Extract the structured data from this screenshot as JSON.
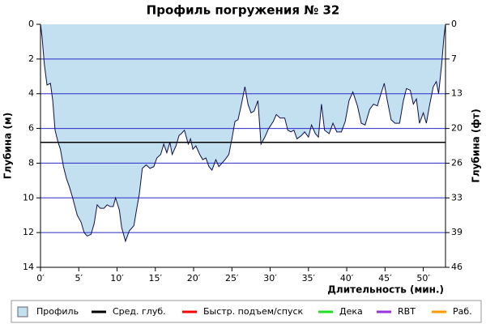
{
  "chart_data": {
    "type": "area",
    "title": "Профиль погружения № 32",
    "y_label": "Глубина (м)",
    "y2_label": "Глубина (фт)",
    "x_label": "Длительность (мин.)",
    "xlim": [
      0,
      52.9
    ],
    "xticks": [
      {
        "value": 0,
        "label": "0′"
      },
      {
        "value": 5,
        "label": "5′"
      },
      {
        "value": 10,
        "label": "10′"
      },
      {
        "value": 15,
        "label": "15′"
      },
      {
        "value": 20,
        "label": "20′"
      },
      {
        "value": 25,
        "label": "25′"
      },
      {
        "value": 30,
        "label": "30′"
      },
      {
        "value": 35,
        "label": "35′"
      },
      {
        "value": 40,
        "label": "40′"
      },
      {
        "value": 45,
        "label": "45′"
      },
      {
        "value": 50,
        "label": "50′"
      }
    ],
    "ylim": [
      0,
      14
    ],
    "yticks": [
      0,
      2,
      4,
      6,
      8,
      10,
      12,
      14
    ],
    "y_inverted": true,
    "y2lim": [
      0,
      45.93
    ],
    "y2ticks": [
      {
        "value": 0,
        "label": "0"
      },
      {
        "value": 6.56,
        "label": "7"
      },
      {
        "value": 13.12,
        "label": "13"
      },
      {
        "value": 19.69,
        "label": "20"
      },
      {
        "value": 26.25,
        "label": "26"
      },
      {
        "value": 32.81,
        "label": "33"
      },
      {
        "value": 39.37,
        "label": "39"
      },
      {
        "value": 45.93,
        "label": "46"
      }
    ],
    "grid": true,
    "grid_color": "#2a2ac8",
    "series": [
      {
        "name": "Профиль",
        "color": "#c2e0f0",
        "line_color": "#10104a",
        "x": [
          0,
          0.2,
          0.5,
          0.85,
          1.3,
          1.6,
          1.9,
          2.3,
          2.6,
          3.0,
          3.4,
          3.8,
          4.2,
          4.8,
          5.3,
          5.7,
          6.1,
          6.6,
          7.0,
          7.4,
          7.8,
          8.3,
          8.7,
          9.1,
          9.5,
          9.8,
          10.3,
          10.6,
          11.1,
          11.6,
          12.2,
          12.5,
          12.9,
          13.3,
          13.8,
          14.3,
          14.8,
          15.2,
          15.7,
          16.1,
          16.5,
          16.9,
          17.2,
          17.7,
          18.1,
          18.4,
          18.8,
          19.3,
          19.6,
          19.9,
          20.3,
          20.8,
          21.2,
          21.6,
          22.0,
          22.4,
          22.9,
          23.3,
          23.7,
          24.1,
          24.6,
          25.0,
          25.4,
          25.8,
          26.2,
          26.7,
          27.1,
          27.5,
          27.9,
          28.4,
          28.8,
          29.3,
          29.8,
          30.4,
          30.8,
          31.3,
          31.9,
          32.3,
          32.7,
          33.1,
          33.5,
          34.1,
          34.5,
          35.0,
          35.4,
          35.9,
          36.3,
          36.7,
          37.1,
          37.7,
          38.2,
          38.7,
          39.3,
          39.8,
          40.3,
          40.8,
          41.4,
          41.9,
          42.4,
          43.0,
          43.5,
          44.0,
          44.4,
          44.9,
          45.3,
          45.8,
          46.3,
          46.9,
          47.4,
          47.8,
          48.3,
          48.7,
          49.1,
          49.5,
          50.0,
          50.4,
          50.8,
          51.3,
          51.7,
          52.0,
          52.4,
          52.7,
          52.9
        ],
        "values": [
          0,
          0.7,
          2.3,
          3.5,
          3.4,
          4.4,
          6.1,
          6.8,
          7.2,
          8.2,
          8.9,
          9.4,
          10.0,
          11.0,
          11.4,
          12.0,
          12.2,
          12.1,
          11.5,
          10.4,
          10.6,
          10.6,
          10.4,
          10.5,
          10.5,
          10.0,
          10.7,
          11.7,
          12.5,
          11.9,
          11.6,
          10.8,
          9.8,
          8.3,
          8.1,
          8.3,
          8.2,
          7.7,
          7.5,
          6.9,
          7.4,
          6.8,
          7.5,
          7.0,
          6.4,
          6.3,
          6.1,
          6.9,
          6.6,
          7.2,
          7.0,
          7.5,
          7.8,
          7.7,
          8.2,
          8.4,
          7.8,
          8.2,
          8.0,
          7.8,
          7.5,
          6.6,
          5.6,
          5.5,
          4.7,
          3.6,
          4.6,
          5.1,
          5.0,
          4.4,
          6.9,
          6.5,
          6.0,
          5.6,
          5.2,
          5.4,
          5.4,
          6.1,
          6.2,
          6.1,
          6.6,
          6.4,
          6.2,
          6.5,
          5.8,
          6.3,
          6.5,
          4.6,
          6.1,
          6.3,
          5.7,
          6.2,
          6.2,
          5.6,
          4.4,
          3.9,
          4.7,
          5.7,
          5.8,
          4.9,
          4.6,
          4.7,
          4.1,
          3.4,
          4.4,
          5.5,
          5.7,
          5.7,
          4.4,
          3.7,
          3.8,
          4.6,
          4.3,
          5.7,
          5.1,
          5.7,
          4.7,
          3.6,
          3.3,
          4.0,
          2.3,
          0.7,
          0
        ]
      },
      {
        "name": "Сред. глуб.",
        "color": "#000000",
        "value": 6.8
      },
      {
        "name": "Быстр. подъем/спуск",
        "color": "#ff0000"
      },
      {
        "name": "Дека",
        "color": "#22dd22"
      },
      {
        "name": "RBT",
        "color": "#9933dd"
      },
      {
        "name": "Раб.",
        "color": "#ff9900"
      }
    ]
  }
}
